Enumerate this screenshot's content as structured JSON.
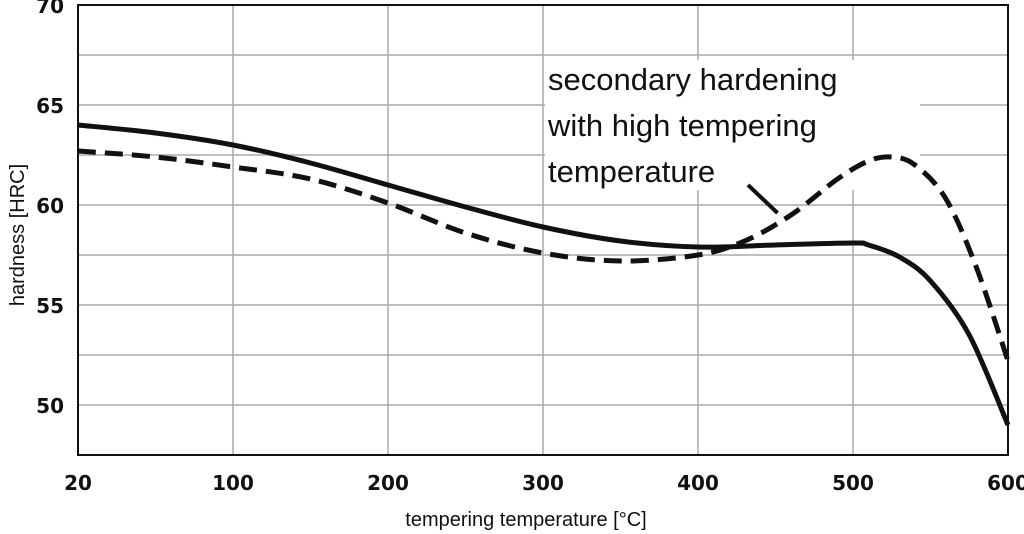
{
  "chart_data": {
    "type": "line",
    "title": "",
    "xlabel": "tempering temperature [°C]",
    "ylabel": "hardness [HRC]",
    "x_ticks": [
      20,
      100,
      200,
      300,
      400,
      500,
      600
    ],
    "y_ticks": [
      50,
      55,
      60,
      65,
      70
    ],
    "xlim": [
      20,
      600
    ],
    "ylim": [
      47.5,
      70
    ],
    "grid": true,
    "series": [
      {
        "style": "solid",
        "color": "#111111",
        "x": [
          20,
          60,
          100,
          150,
          200,
          250,
          300,
          350,
          400,
          450,
          500,
          510,
          530,
          550,
          575,
          600
        ],
        "y": [
          64.0,
          63.6,
          63.0,
          62.1,
          61.0,
          59.9,
          58.9,
          58.2,
          57.9,
          58.0,
          58.1,
          58.0,
          57.4,
          56.2,
          53.5,
          49.0
        ]
      },
      {
        "style": "dashed",
        "color": "#111111",
        "x": [
          20,
          60,
          100,
          150,
          200,
          250,
          300,
          350,
          400,
          430,
          460,
          490,
          510,
          525,
          540,
          560,
          580,
          600
        ],
        "y": [
          62.7,
          62.4,
          61.9,
          61.3,
          60.1,
          58.6,
          57.6,
          57.2,
          57.5,
          58.2,
          59.5,
          61.3,
          62.2,
          62.4,
          62.0,
          60.3,
          56.8,
          52.2
        ]
      }
    ],
    "annotations": [
      {
        "lines": [
          "secondary hardening",
          "with high tempering",
          "temperature"
        ],
        "points_to": {
          "x": 450,
          "y": 59.5
        }
      }
    ]
  }
}
